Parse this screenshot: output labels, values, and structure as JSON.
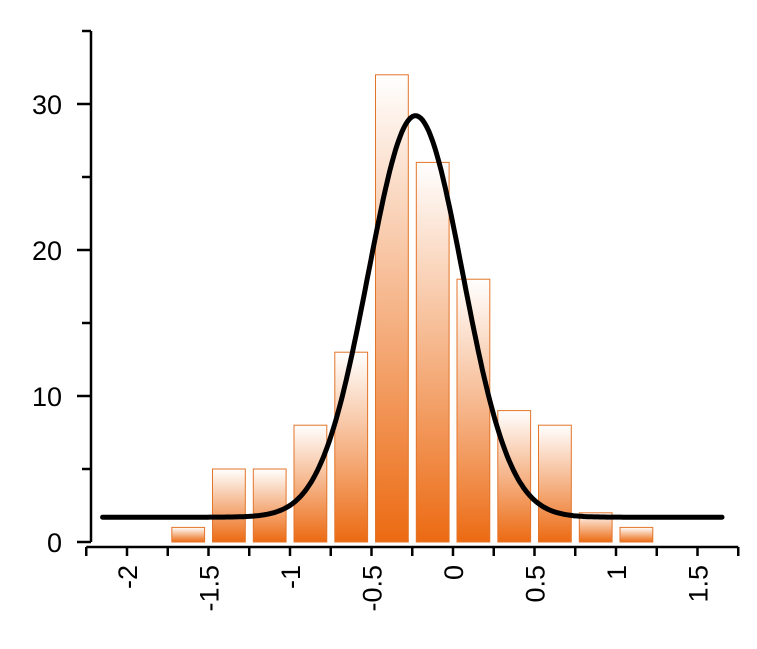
{
  "chart_data": {
    "type": "bar",
    "subtype": "histogram-with-fit",
    "title": "",
    "xlabel": "",
    "ylabel": "",
    "bin_width": 0.25,
    "xlim": [
      -2.25,
      1.75
    ],
    "ylim": [
      0,
      35
    ],
    "bins": [
      {
        "x0": -1.75,
        "x1": -1.5,
        "count": 1
      },
      {
        "x0": -1.5,
        "x1": -1.25,
        "count": 5
      },
      {
        "x0": -1.25,
        "x1": -1.0,
        "count": 5
      },
      {
        "x0": -1.0,
        "x1": -0.75,
        "count": 8
      },
      {
        "x0": -0.75,
        "x1": -0.5,
        "count": 13
      },
      {
        "x0": -0.5,
        "x1": -0.25,
        "count": 32
      },
      {
        "x0": -0.25,
        "x1": 0.0,
        "count": 26
      },
      {
        "x0": 0.0,
        "x1": 0.25,
        "count": 18
      },
      {
        "x0": 0.25,
        "x1": 0.5,
        "count": 9
      },
      {
        "x0": 0.5,
        "x1": 0.75,
        "count": 8
      },
      {
        "x0": 0.75,
        "x1": 1.0,
        "count": 2
      },
      {
        "x0": 1.0,
        "x1": 1.25,
        "count": 1
      }
    ],
    "fit_curve": {
      "type": "gaussian",
      "baseline": 1.7,
      "amplitude": 27.5,
      "center": -0.23,
      "sigma": 0.29,
      "x_range": [
        -2.15,
        1.65
      ]
    },
    "x_ticks": [
      {
        "value": -2,
        "label": "-2"
      },
      {
        "value": -1.5,
        "label": "-1.5"
      },
      {
        "value": -1,
        "label": "-1"
      },
      {
        "value": -0.5,
        "label": "-0.5"
      },
      {
        "value": 0,
        "label": "0"
      },
      {
        "value": 0.5,
        "label": "0.5"
      },
      {
        "value": 1,
        "label": "1"
      },
      {
        "value": 1.5,
        "label": "1.5"
      }
    ],
    "x_minor_ticks": [
      -2.25,
      -1.75,
      -1.25,
      -0.75,
      -0.25,
      0.25,
      0.75,
      1.25,
      1.75
    ],
    "y_ticks": [
      {
        "value": 0,
        "label": "0"
      },
      {
        "value": 10,
        "label": "10"
      },
      {
        "value": 20,
        "label": "20"
      },
      {
        "value": 30,
        "label": "30"
      }
    ],
    "y_minor_ticks": [
      5,
      15,
      25,
      35
    ],
    "grid": false,
    "colors": {
      "bar_top": "#ffffff",
      "bar_bottom": "#ec6a12",
      "bar_edge": "#e3752a",
      "curve": "#000000"
    }
  }
}
